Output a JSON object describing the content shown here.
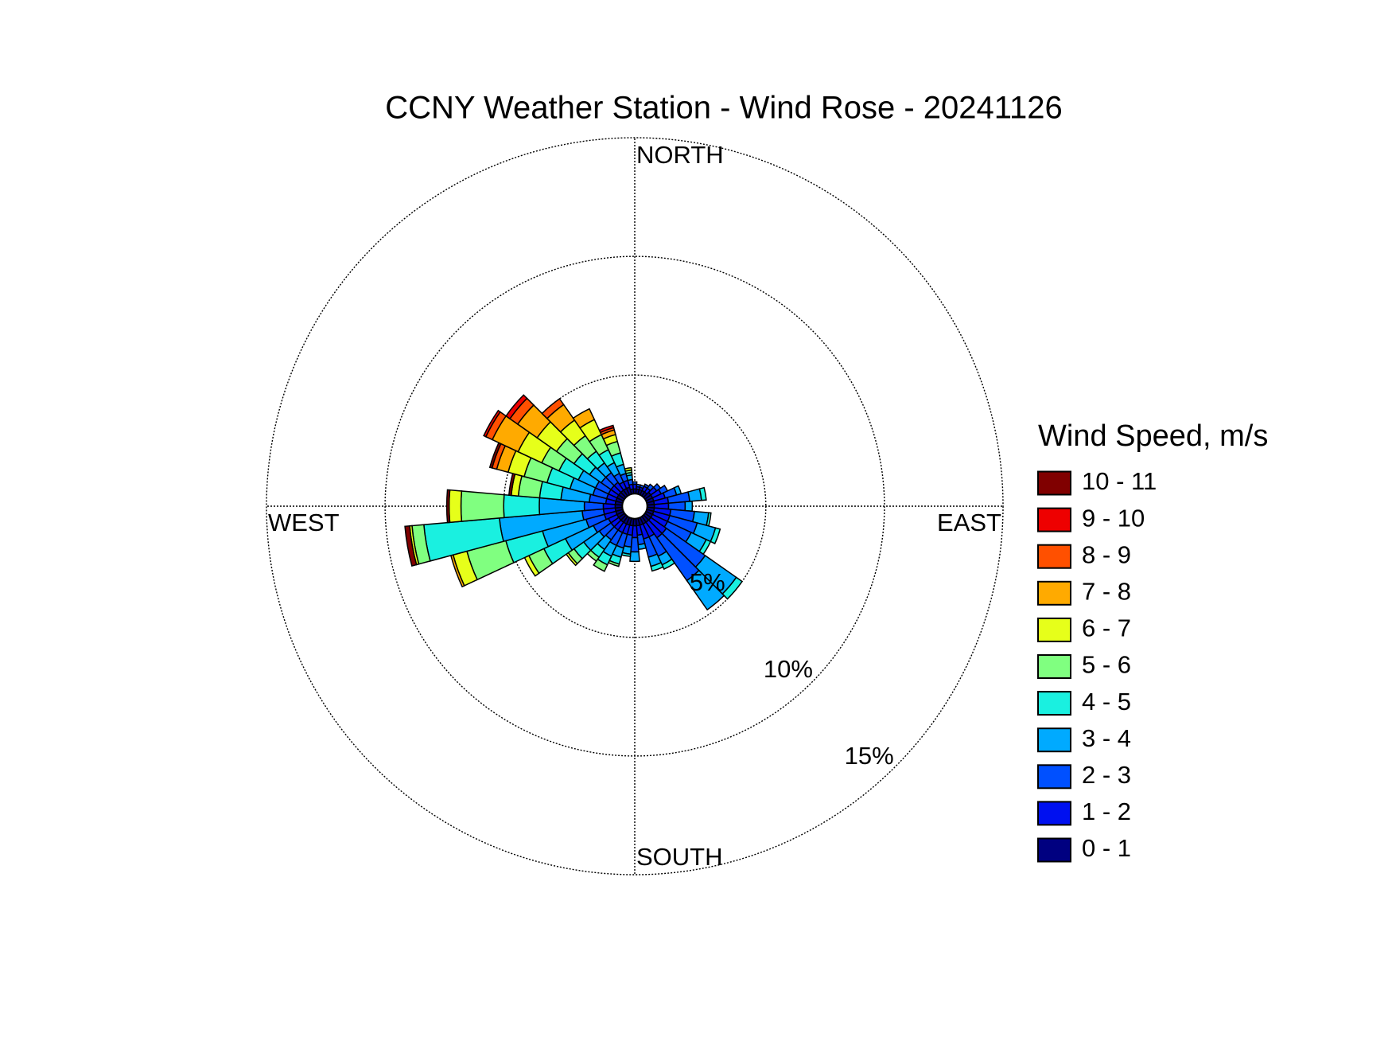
{
  "chart_data": {
    "type": "windrose",
    "title": "CCNY Weather Station - Wind Rose - 20241126",
    "direction_labels": [
      "NORTH",
      "EAST",
      "SOUTH",
      "WEST"
    ],
    "x": [
      0,
      10,
      20,
      30,
      40,
      50,
      60,
      70,
      80,
      90,
      100,
      110,
      120,
      130,
      140,
      150,
      160,
      170,
      180,
      190,
      200,
      210,
      220,
      230,
      240,
      250,
      260,
      270,
      280,
      290,
      300,
      310,
      320,
      330,
      340,
      350
    ],
    "ylim": [
      0,
      15
    ],
    "yticks": [
      {
        "value": 5,
        "label": "5%"
      },
      {
        "value": 10,
        "label": "10%"
      },
      {
        "value": 15,
        "label": "15%"
      }
    ],
    "grid": true,
    "legend": "right",
    "legend_title": "Wind Speed, m/s",
    "series": [
      {
        "name": "10 - 11",
        "color": "#800000",
        "values": [
          0,
          0,
          0,
          0,
          0,
          0,
          0,
          0,
          0,
          0,
          0,
          0,
          0,
          0,
          0,
          0,
          0,
          0,
          0,
          0,
          0,
          0,
          0,
          0,
          0,
          0,
          0.2,
          0.1,
          0.1,
          0.1,
          0,
          0,
          0,
          0,
          0,
          0
        ]
      },
      {
        "name": "9 - 10",
        "color": "#ee0000",
        "values": [
          0,
          0,
          0,
          0,
          0,
          0,
          0,
          0,
          0,
          0,
          0,
          0,
          0,
          0,
          0,
          0,
          0,
          0,
          0,
          0,
          0,
          0,
          0,
          0,
          0,
          0,
          0,
          0,
          0,
          0,
          0.1,
          0.2,
          0,
          0,
          0.1,
          0
        ]
      },
      {
        "name": "8 - 9",
        "color": "#ff5000",
        "values": [
          0,
          0,
          0,
          0,
          0,
          0,
          0,
          0,
          0,
          0,
          0,
          0,
          0,
          0,
          0,
          0,
          0,
          0,
          0,
          0,
          0,
          0,
          0,
          0,
          0,
          0,
          0,
          0,
          0,
          0.2,
          0.3,
          0.4,
          0.3,
          0,
          0.1,
          0
        ]
      },
      {
        "name": "7 - 8",
        "color": "#ffaa00",
        "values": [
          0,
          0,
          0,
          0,
          0,
          0,
          0,
          0,
          0,
          0,
          0,
          0,
          0,
          0,
          0,
          0,
          0,
          0,
          0,
          0,
          0,
          0,
          0,
          0,
          0,
          0.1,
          0,
          0,
          0,
          0.5,
          1.2,
          1.0,
          0.8,
          0.5,
          0.2,
          0
        ]
      },
      {
        "name": "6 - 7",
        "color": "#e6ff1a",
        "values": [
          0,
          0,
          0,
          0,
          0,
          0,
          0,
          0,
          0,
          0,
          0,
          0,
          0,
          0,
          0,
          0,
          0,
          0,
          0,
          0,
          0,
          0,
          0,
          0.1,
          0.2,
          0.6,
          0.1,
          0.5,
          0.3,
          0.7,
          1.1,
          1.0,
          0.8,
          0.7,
          0.3,
          0.1
        ]
      },
      {
        "name": "5 - 6",
        "color": "#80ff80",
        "values": [
          0,
          0,
          0,
          0,
          0,
          0,
          0,
          0,
          0,
          0,
          0,
          0,
          0,
          0,
          0,
          0,
          0,
          0,
          0,
          0,
          0.1,
          0.3,
          0.2,
          0.3,
          0.7,
          1.7,
          0.5,
          1.8,
          0.9,
          1.0,
          0.8,
          0.9,
          0.8,
          0.7,
          0.5,
          0.1
        ]
      },
      {
        "name": "4 - 5",
        "color": "#1af0e0",
        "values": [
          0,
          0,
          0,
          0,
          0,
          0,
          0,
          0,
          0.2,
          0,
          0.1,
          0.2,
          0.2,
          0.3,
          0,
          0.2,
          0.2,
          0,
          0,
          0.1,
          0.3,
          0.4,
          0.4,
          0.5,
          1.0,
          1.6,
          3.2,
          1.5,
          0.9,
          1.0,
          0.9,
          0.8,
          0.6,
          0.6,
          0.5,
          0.1
        ]
      },
      {
        "name": "3 - 4",
        "color": "#00aaff",
        "values": [
          0,
          0,
          0,
          0,
          0,
          0,
          0,
          0.2,
          0.5,
          0.3,
          0.6,
          0.8,
          0.7,
          1.6,
          1.5,
          0.4,
          0.4,
          0.2,
          0.4,
          0.3,
          0.4,
          0.5,
          0.5,
          0.8,
          1.3,
          1.9,
          3.5,
          1.9,
          1.2,
          1.0,
          0.8,
          0.6,
          0.5,
          0.5,
          0.4,
          0.2
        ]
      },
      {
        "name": "2 - 3",
        "color": "#0050ff",
        "values": [
          0.1,
          0.1,
          0.1,
          0.1,
          0.2,
          0.2,
          0.3,
          0.5,
          0.9,
          0.7,
          1.0,
          1.2,
          1.1,
          2.0,
          2.2,
          0.9,
          0.8,
          0.4,
          0.6,
          0.5,
          0.6,
          0.6,
          0.5,
          0.6,
          0.7,
          0.8,
          0.9,
          0.8,
          0.7,
          0.6,
          0.6,
          0.5,
          0.5,
          0.4,
          0.3,
          0.2
        ]
      },
      {
        "name": "1 - 2",
        "color": "#0010f0",
        "values": [
          0.2,
          0.1,
          0.1,
          0.2,
          0.2,
          0.3,
          0.4,
          0.5,
          0.6,
          0.6,
          0.7,
          0.7,
          0.7,
          0.8,
          0.8,
          0.6,
          0.6,
          0.4,
          0.5,
          0.4,
          0.4,
          0.4,
          0.4,
          0.4,
          0.4,
          0.5,
          0.5,
          0.5,
          0.4,
          0.4,
          0.4,
          0.4,
          0.4,
          0.3,
          0.3,
          0.2
        ]
      },
      {
        "name": "0 - 1",
        "color": "#000080",
        "values": [
          0.2,
          0.2,
          0.2,
          0.2,
          0.2,
          0.3,
          0.3,
          0.3,
          0.3,
          0.3,
          0.3,
          0.3,
          0.3,
          0.3,
          0.3,
          0.3,
          0.3,
          0.3,
          0.3,
          0.3,
          0.3,
          0.3,
          0.3,
          0.3,
          0.3,
          0.3,
          0.3,
          0.3,
          0.3,
          0.3,
          0.3,
          0.3,
          0.3,
          0.3,
          0.3,
          0.2
        ]
      }
    ]
  }
}
